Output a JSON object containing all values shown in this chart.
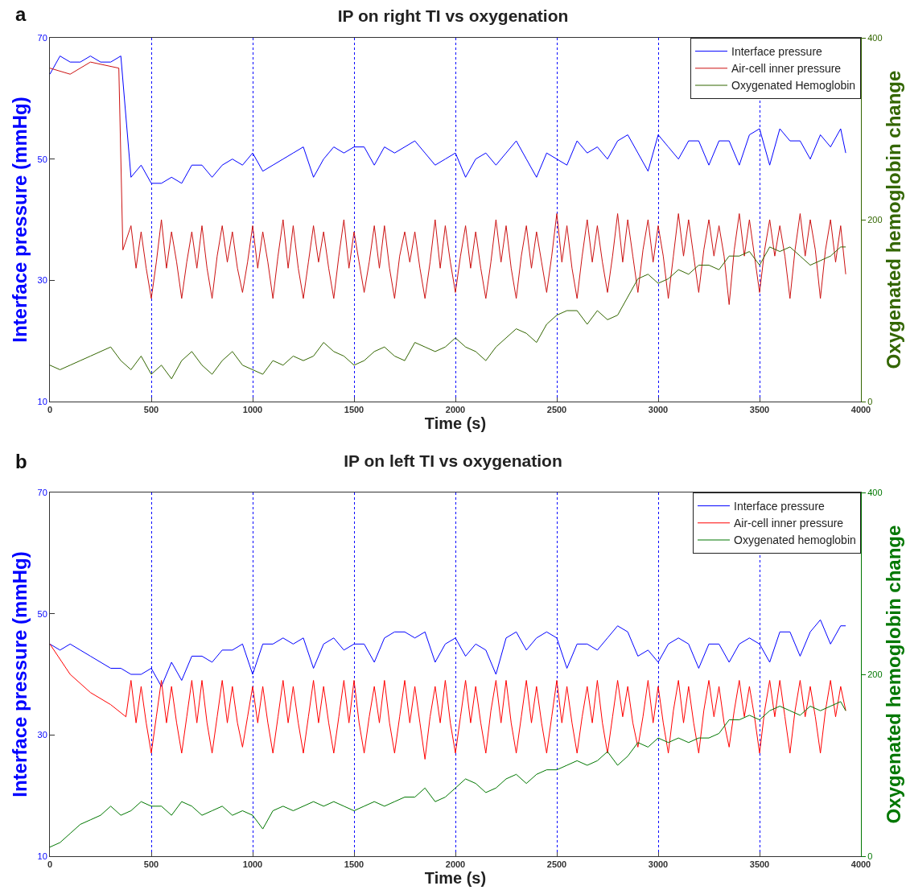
{
  "chart_data": [
    {
      "type": "line",
      "title": "IP on right TI vs oxygenation",
      "annotations": [
        "a"
      ],
      "xlabel": "Time (s)",
      "ylabel": "Interface pressure (mmHg)",
      "y2label": "Oxygenated hemoglobin change",
      "xlim": [
        0,
        4000
      ],
      "xticks": [
        0,
        500,
        1000,
        1500,
        2000,
        2500,
        3000,
        3500,
        4000
      ],
      "ylim": [
        10,
        70
      ],
      "yticks": [
        10,
        30,
        50,
        70
      ],
      "y2lim": [
        0,
        400
      ],
      "y2ticks": [
        0,
        200,
        400
      ],
      "grid": "x",
      "legend": "top right",
      "series": [
        {
          "name": "Interface pressure",
          "color": "#0000ff",
          "x": [
            0,
            50,
            100,
            150,
            200,
            250,
            300,
            350,
            400,
            450,
            500,
            550,
            600,
            650,
            700,
            750,
            800,
            850,
            900,
            950,
            1000,
            1050,
            1100,
            1150,
            1200,
            1250,
            1300,
            1350,
            1400,
            1450,
            1500,
            1550,
            1600,
            1650,
            1700,
            1750,
            1800,
            1850,
            1900,
            1950,
            2000,
            2050,
            2100,
            2150,
            2200,
            2250,
            2300,
            2350,
            2400,
            2450,
            2500,
            2550,
            2600,
            2650,
            2700,
            2750,
            2800,
            2850,
            2900,
            2950,
            3000,
            3050,
            3100,
            3150,
            3200,
            3250,
            3300,
            3350,
            3400,
            3450,
            3500,
            3550,
            3600,
            3650,
            3700,
            3750,
            3800,
            3850,
            3900,
            3925
          ],
          "values": [
            64,
            67,
            66,
            66,
            67,
            66,
            66,
            67,
            47,
            49,
            46,
            46,
            47,
            46,
            49,
            49,
            47,
            49,
            50,
            49,
            51,
            48,
            49,
            50,
            51,
            52,
            47,
            50,
            52,
            51,
            52,
            52,
            49,
            52,
            51,
            52,
            53,
            51,
            49,
            50,
            51,
            47,
            50,
            51,
            49,
            51,
            53,
            50,
            47,
            51,
            50,
            49,
            53,
            51,
            52,
            50,
            53,
            54,
            51,
            48,
            54,
            52,
            50,
            53,
            53,
            49,
            53,
            53,
            49,
            54,
            55,
            49,
            55,
            53,
            53,
            50,
            54,
            52,
            55,
            51
          ]
        },
        {
          "name": "Air-cell inner pressure",
          "color": "#cc1111",
          "x": [
            0,
            100,
            200,
            340,
            360,
            400,
            425,
            450,
            475,
            500,
            525,
            550,
            575,
            600,
            625,
            650,
            675,
            700,
            725,
            750,
            775,
            800,
            825,
            850,
            875,
            900,
            925,
            950,
            975,
            1000,
            1025,
            1050,
            1075,
            1100,
            1125,
            1150,
            1175,
            1200,
            1225,
            1250,
            1275,
            1300,
            1325,
            1350,
            1375,
            1400,
            1425,
            1450,
            1475,
            1500,
            1525,
            1550,
            1575,
            1600,
            1625,
            1650,
            1675,
            1700,
            1725,
            1750,
            1775,
            1800,
            1825,
            1850,
            1875,
            1900,
            1925,
            1950,
            1975,
            2000,
            2025,
            2050,
            2075,
            2100,
            2125,
            2150,
            2175,
            2200,
            2225,
            2250,
            2275,
            2300,
            2325,
            2350,
            2375,
            2400,
            2425,
            2450,
            2475,
            2500,
            2525,
            2550,
            2575,
            2600,
            2625,
            2650,
            2675,
            2700,
            2725,
            2750,
            2775,
            2800,
            2825,
            2850,
            2875,
            2900,
            2925,
            2950,
            2975,
            3000,
            3025,
            3050,
            3075,
            3100,
            3125,
            3150,
            3175,
            3200,
            3225,
            3250,
            3275,
            3300,
            3325,
            3350,
            3375,
            3400,
            3425,
            3450,
            3475,
            3500,
            3525,
            3550,
            3575,
            3600,
            3625,
            3650,
            3675,
            3700,
            3725,
            3750,
            3775,
            3800,
            3825,
            3850,
            3875,
            3900,
            3925
          ],
          "values": [
            65,
            64,
            66,
            65,
            35,
            39,
            32,
            38,
            32,
            27,
            33,
            40,
            32,
            38,
            33,
            27,
            33,
            38,
            32,
            39,
            32,
            27,
            34,
            39,
            33,
            38,
            32,
            28,
            33,
            39,
            32,
            38,
            33,
            27,
            34,
            40,
            32,
            39,
            32,
            27,
            33,
            39,
            33,
            38,
            32,
            27,
            34,
            40,
            32,
            38,
            33,
            28,
            33,
            39,
            32,
            39,
            32,
            27,
            34,
            38,
            33,
            38,
            32,
            27,
            33,
            40,
            32,
            39,
            33,
            28,
            34,
            39,
            32,
            38,
            32,
            27,
            33,
            40,
            33,
            39,
            32,
            27,
            34,
            39,
            32,
            38,
            33,
            28,
            34,
            41,
            33,
            39,
            32,
            27,
            34,
            40,
            33,
            39,
            33,
            28,
            34,
            41,
            33,
            40,
            34,
            28,
            35,
            40,
            33,
            39,
            34,
            27,
            34,
            41,
            34,
            40,
            34,
            28,
            35,
            40,
            34,
            39,
            34,
            26,
            35,
            41,
            34,
            40,
            34,
            28,
            35,
            40,
            34,
            39,
            34,
            27,
            35,
            41,
            34,
            40,
            35,
            27,
            35,
            40,
            33,
            39,
            31
          ]
        },
        {
          "name": "Oxygenated Hemoglobin",
          "color": "#336600",
          "axis": "y2",
          "x": [
            0,
            50,
            100,
            150,
            200,
            250,
            300,
            350,
            400,
            450,
            500,
            550,
            600,
            650,
            700,
            750,
            800,
            850,
            900,
            950,
            1000,
            1050,
            1100,
            1150,
            1200,
            1250,
            1300,
            1350,
            1400,
            1450,
            1500,
            1550,
            1600,
            1650,
            1700,
            1750,
            1800,
            1850,
            1900,
            1950,
            2000,
            2050,
            2100,
            2150,
            2200,
            2250,
            2300,
            2350,
            2400,
            2450,
            2500,
            2550,
            2600,
            2650,
            2700,
            2750,
            2800,
            2850,
            2900,
            2950,
            3000,
            3050,
            3100,
            3150,
            3200,
            3250,
            3300,
            3350,
            3400,
            3450,
            3500,
            3550,
            3600,
            3650,
            3700,
            3750,
            3800,
            3850,
            3900,
            3925
          ],
          "values": [
            40,
            35,
            40,
            45,
            50,
            55,
            60,
            45,
            35,
            50,
            30,
            40,
            25,
            45,
            55,
            40,
            30,
            45,
            55,
            40,
            35,
            30,
            45,
            40,
            50,
            45,
            50,
            65,
            55,
            50,
            40,
            45,
            55,
            60,
            50,
            45,
            65,
            60,
            55,
            60,
            70,
            60,
            55,
            45,
            60,
            70,
            80,
            75,
            65,
            85,
            95,
            100,
            100,
            85,
            100,
            90,
            95,
            115,
            135,
            140,
            130,
            135,
            145,
            140,
            150,
            150,
            145,
            160,
            160,
            165,
            150,
            170,
            165,
            170,
            160,
            150,
            155,
            160,
            170,
            170
          ]
        }
      ]
    },
    {
      "type": "line",
      "title": "IP on left TI vs oxygenation",
      "annotations": [
        "b"
      ],
      "xlabel": "Time (s)",
      "ylabel": "Interface pressure (mmHg)",
      "y2label": "Oxygenated hemoglobin change",
      "xlim": [
        0,
        4000
      ],
      "xticks": [
        0,
        500,
        1000,
        1500,
        2000,
        2500,
        3000,
        3500,
        4000
      ],
      "ylim": [
        10,
        70
      ],
      "yticks": [
        10,
        30,
        50,
        70
      ],
      "y2lim": [
        0,
        400
      ],
      "y2ticks": [
        0,
        200,
        400
      ],
      "grid": "x",
      "legend": "top right",
      "series": [
        {
          "name": "Interface pressure",
          "color": "#0000ff",
          "x": [
            0,
            50,
            100,
            150,
            200,
            250,
            300,
            350,
            400,
            450,
            500,
            550,
            600,
            650,
            700,
            750,
            800,
            850,
            900,
            950,
            1000,
            1050,
            1100,
            1150,
            1200,
            1250,
            1300,
            1350,
            1400,
            1450,
            1500,
            1550,
            1600,
            1650,
            1700,
            1750,
            1800,
            1850,
            1900,
            1950,
            2000,
            2050,
            2100,
            2150,
            2200,
            2250,
            2300,
            2350,
            2400,
            2450,
            2500,
            2550,
            2600,
            2650,
            2700,
            2750,
            2800,
            2850,
            2900,
            2950,
            3000,
            3050,
            3100,
            3150,
            3200,
            3250,
            3300,
            3350,
            3400,
            3450,
            3500,
            3550,
            3600,
            3650,
            3700,
            3750,
            3800,
            3850,
            3900,
            3925
          ],
          "values": [
            45,
            44,
            45,
            44,
            43,
            42,
            41,
            41,
            40,
            40,
            41,
            38,
            42,
            39,
            43,
            43,
            42,
            44,
            44,
            45,
            40,
            45,
            45,
            46,
            45,
            46,
            41,
            45,
            46,
            44,
            45,
            45,
            42,
            46,
            47,
            47,
            46,
            47,
            42,
            45,
            46,
            43,
            45,
            44,
            40,
            46,
            47,
            44,
            46,
            47,
            46,
            41,
            45,
            45,
            44,
            46,
            48,
            47,
            43,
            44,
            42,
            45,
            46,
            45,
            41,
            45,
            45,
            42,
            45,
            46,
            45,
            42,
            47,
            47,
            43,
            47,
            49,
            45,
            48,
            48
          ]
        },
        {
          "name": "Air-cell inner pressure",
          "color": "#ff0000",
          "x": [
            0,
            100,
            200,
            300,
            375,
            400,
            425,
            450,
            475,
            500,
            525,
            550,
            575,
            600,
            625,
            650,
            675,
            700,
            725,
            750,
            775,
            800,
            825,
            850,
            875,
            900,
            925,
            950,
            975,
            1000,
            1025,
            1050,
            1075,
            1100,
            1125,
            1150,
            1175,
            1200,
            1225,
            1250,
            1275,
            1300,
            1325,
            1350,
            1375,
            1400,
            1425,
            1450,
            1475,
            1500,
            1525,
            1550,
            1575,
            1600,
            1625,
            1650,
            1675,
            1700,
            1725,
            1750,
            1775,
            1800,
            1825,
            1850,
            1875,
            1900,
            1925,
            1950,
            1975,
            2000,
            2025,
            2050,
            2075,
            2100,
            2125,
            2150,
            2175,
            2200,
            2225,
            2250,
            2275,
            2300,
            2325,
            2350,
            2375,
            2400,
            2425,
            2450,
            2475,
            2500,
            2525,
            2550,
            2575,
            2600,
            2625,
            2650,
            2675,
            2700,
            2725,
            2750,
            2775,
            2800,
            2825,
            2850,
            2875,
            2900,
            2925,
            2950,
            2975,
            3000,
            3025,
            3050,
            3075,
            3100,
            3125,
            3150,
            3175,
            3200,
            3225,
            3250,
            3275,
            3300,
            3325,
            3350,
            3375,
            3400,
            3425,
            3450,
            3475,
            3500,
            3525,
            3550,
            3575,
            3600,
            3625,
            3650,
            3675,
            3700,
            3725,
            3750,
            3775,
            3800,
            3825,
            3850,
            3875,
            3900,
            3925
          ],
          "values": [
            45,
            40,
            37,
            35,
            33,
            39,
            32,
            38,
            32,
            27,
            33,
            39,
            32,
            38,
            32,
            27,
            33,
            39,
            32,
            39,
            32,
            27,
            33,
            39,
            32,
            38,
            32,
            28,
            33,
            38,
            32,
            38,
            32,
            27,
            33,
            39,
            32,
            38,
            32,
            27,
            33,
            39,
            32,
            38,
            32,
            27,
            33,
            39,
            32,
            39,
            32,
            27,
            33,
            38,
            32,
            39,
            32,
            27,
            33,
            39,
            32,
            38,
            32,
            26,
            33,
            38,
            32,
            39,
            32,
            27,
            33,
            39,
            32,
            38,
            32,
            27,
            34,
            39,
            32,
            39,
            32,
            27,
            33,
            39,
            32,
            38,
            32,
            27,
            33,
            39,
            32,
            38,
            32,
            27,
            33,
            38,
            32,
            39,
            32,
            27,
            33,
            39,
            33,
            38,
            32,
            28,
            33,
            39,
            32,
            38,
            32,
            27,
            34,
            39,
            32,
            38,
            32,
            27,
            34,
            39,
            33,
            38,
            32,
            28,
            34,
            39,
            33,
            38,
            33,
            27,
            34,
            39,
            33,
            39,
            33,
            27,
            34,
            39,
            33,
            38,
            33,
            27,
            34,
            39,
            33,
            38,
            34
          ]
        },
        {
          "name": "Oxygenated hemoglobin",
          "color": "#007700",
          "axis": "y2",
          "x": [
            0,
            50,
            100,
            150,
            200,
            250,
            300,
            350,
            400,
            450,
            500,
            550,
            600,
            650,
            700,
            750,
            800,
            850,
            900,
            950,
            1000,
            1050,
            1100,
            1150,
            1200,
            1250,
            1300,
            1350,
            1400,
            1450,
            1500,
            1550,
            1600,
            1650,
            1700,
            1750,
            1800,
            1850,
            1900,
            1950,
            2000,
            2050,
            2100,
            2150,
            2200,
            2250,
            2300,
            2350,
            2400,
            2450,
            2500,
            2550,
            2600,
            2650,
            2700,
            2750,
            2800,
            2850,
            2900,
            2950,
            3000,
            3050,
            3100,
            3150,
            3200,
            3250,
            3300,
            3350,
            3400,
            3450,
            3500,
            3550,
            3600,
            3650,
            3700,
            3750,
            3800,
            3850,
            3900,
            3925
          ],
          "values": [
            10,
            15,
            25,
            35,
            40,
            45,
            55,
            45,
            50,
            60,
            55,
            55,
            45,
            60,
            55,
            45,
            50,
            55,
            45,
            50,
            45,
            30,
            50,
            55,
            50,
            55,
            60,
            55,
            60,
            55,
            50,
            55,
            60,
            55,
            60,
            65,
            65,
            75,
            60,
            65,
            75,
            85,
            80,
            70,
            75,
            85,
            90,
            80,
            90,
            95,
            95,
            100,
            105,
            100,
            105,
            115,
            100,
            110,
            125,
            120,
            130,
            125,
            130,
            125,
            130,
            130,
            135,
            150,
            150,
            155,
            150,
            160,
            165,
            160,
            155,
            165,
            160,
            165,
            170,
            160
          ]
        }
      ]
    }
  ]
}
